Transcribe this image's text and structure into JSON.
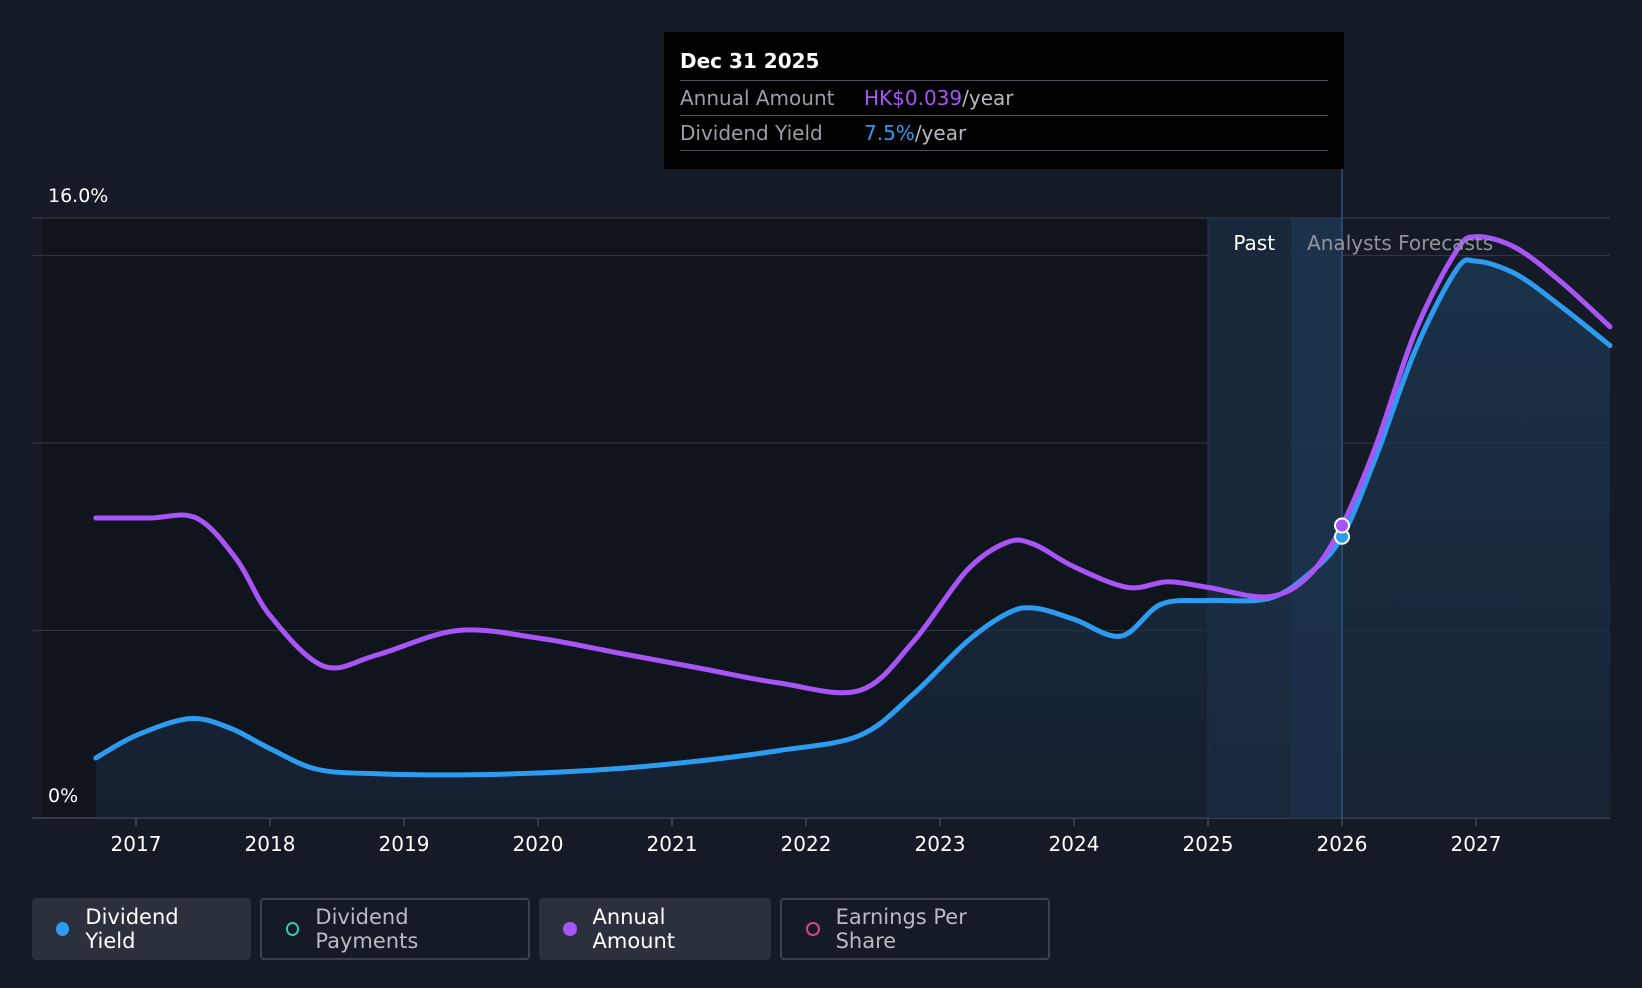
{
  "tooltip": {
    "date": "Dec 31 2025",
    "annual_label": "Annual Amount",
    "annual_value": "HK$0.039",
    "yield_label": "Dividend Yield",
    "yield_value": "7.5%",
    "unit": "/year"
  },
  "regions": {
    "past": "Past",
    "forecast": "Analysts Forecasts"
  },
  "legend": [
    {
      "label": "Dividend Yield",
      "color": "#2d9cf0",
      "active": true,
      "filled": true
    },
    {
      "label": "Dividend Payments",
      "color": "#3fc1b0",
      "active": false,
      "filled": false
    },
    {
      "label": "Annual Amount",
      "color": "#a855f7",
      "active": true,
      "filled": true
    },
    {
      "label": "Earnings Per Share",
      "color": "#d9477e",
      "active": false,
      "filled": false
    }
  ],
  "chart_data": {
    "type": "line",
    "title": "",
    "xlabel": "",
    "ylabel": "",
    "x_ticks": [
      "2017",
      "2018",
      "2019",
      "2020",
      "2021",
      "2022",
      "2023",
      "2024",
      "2025",
      "2026",
      "2027"
    ],
    "y_ticks": [
      "0%",
      "16.0%"
    ],
    "ylim": [
      0,
      16
    ],
    "xlim": [
      2016.3,
      2028.0
    ],
    "grid": true,
    "tooltip_x": 2026.0,
    "past_band": [
      2025.0,
      2025.62
    ],
    "forecast_band": [
      2025.62,
      2026.0
    ],
    "series": [
      {
        "name": "Dividend Yield",
        "color": "#2d9cf0",
        "fill": true,
        "points": [
          [
            2016.7,
            1.6
          ],
          [
            2017.0,
            2.2
          ],
          [
            2017.4,
            2.65
          ],
          [
            2017.7,
            2.4
          ],
          [
            2018.0,
            1.85
          ],
          [
            2018.35,
            1.3
          ],
          [
            2018.8,
            1.18
          ],
          [
            2019.4,
            1.15
          ],
          [
            2020.0,
            1.2
          ],
          [
            2020.6,
            1.32
          ],
          [
            2021.2,
            1.52
          ],
          [
            2021.8,
            1.8
          ],
          [
            2022.4,
            2.2
          ],
          [
            2022.8,
            3.3
          ],
          [
            2023.2,
            4.7
          ],
          [
            2023.5,
            5.45
          ],
          [
            2023.7,
            5.6
          ],
          [
            2024.0,
            5.3
          ],
          [
            2024.35,
            4.85
          ],
          [
            2024.65,
            5.7
          ],
          [
            2025.0,
            5.8
          ],
          [
            2025.45,
            5.85
          ],
          [
            2025.75,
            6.5
          ],
          [
            2026.0,
            7.5
          ],
          [
            2026.25,
            9.6
          ],
          [
            2026.55,
            12.5
          ],
          [
            2026.85,
            14.6
          ],
          [
            2027.0,
            14.85
          ],
          [
            2027.3,
            14.5
          ],
          [
            2027.65,
            13.6
          ],
          [
            2028.0,
            12.6
          ]
        ]
      },
      {
        "name": "Annual Amount",
        "color": "#a855f7",
        "fill": false,
        "points": [
          [
            2016.7,
            8.0
          ],
          [
            2017.1,
            8.0
          ],
          [
            2017.45,
            8.0
          ],
          [
            2017.75,
            6.9
          ],
          [
            2018.0,
            5.4
          ],
          [
            2018.4,
            4.05
          ],
          [
            2018.8,
            4.35
          ],
          [
            2019.4,
            5.0
          ],
          [
            2020.0,
            4.8
          ],
          [
            2020.6,
            4.4
          ],
          [
            2021.2,
            4.0
          ],
          [
            2021.8,
            3.6
          ],
          [
            2022.4,
            3.4
          ],
          [
            2022.8,
            4.7
          ],
          [
            2023.2,
            6.6
          ],
          [
            2023.5,
            7.35
          ],
          [
            2023.7,
            7.3
          ],
          [
            2024.0,
            6.7
          ],
          [
            2024.4,
            6.15
          ],
          [
            2024.7,
            6.3
          ],
          [
            2025.0,
            6.15
          ],
          [
            2025.45,
            5.9
          ],
          [
            2025.75,
            6.45
          ],
          [
            2026.0,
            7.8
          ],
          [
            2026.25,
            9.9
          ],
          [
            2026.55,
            13.0
          ],
          [
            2026.85,
            15.1
          ],
          [
            2027.0,
            15.5
          ],
          [
            2027.3,
            15.2
          ],
          [
            2027.65,
            14.25
          ],
          [
            2028.0,
            13.1
          ]
        ]
      }
    ]
  }
}
